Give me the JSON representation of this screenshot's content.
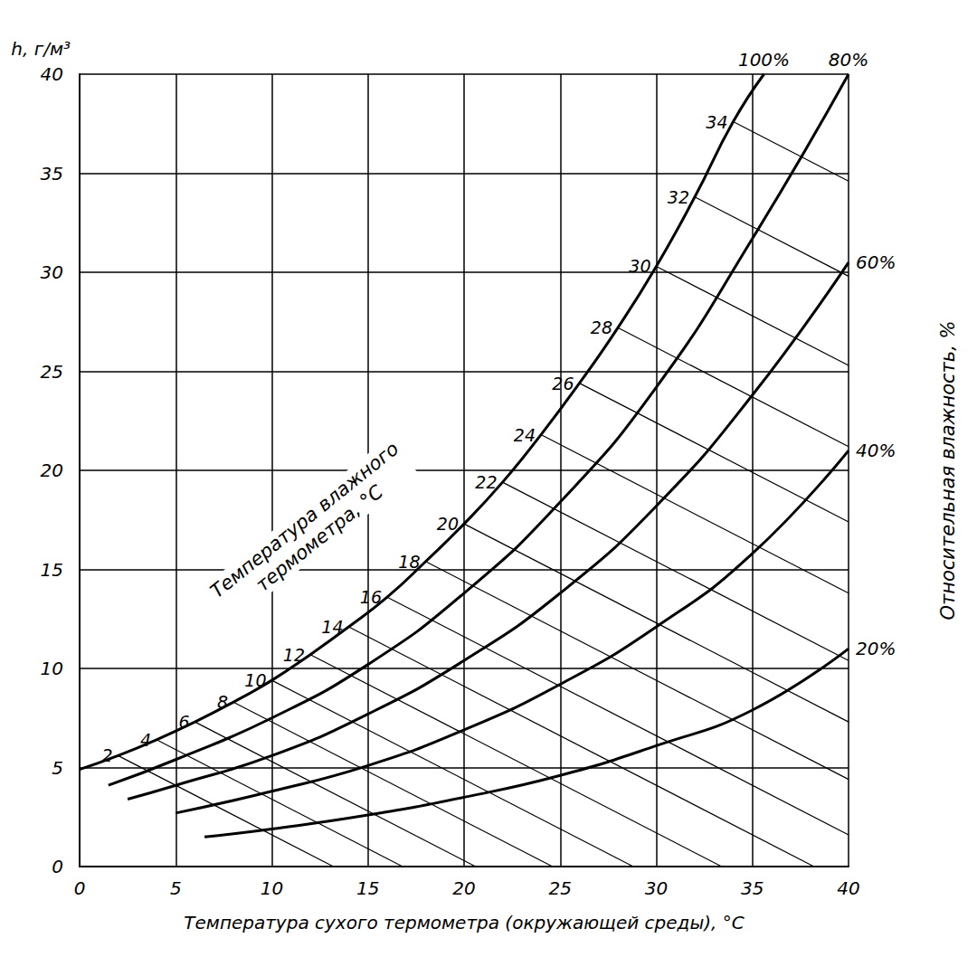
{
  "chart_data": {
    "type": "line",
    "x_label": "Температура сухого термометра (окружающей среды), °C",
    "y_label": "h, г/м³",
    "y2_label": "Относительная влажность, %",
    "annotation": "Температура влажного\nтермометра, °C",
    "xlim": [
      0,
      40
    ],
    "xticks": [
      0,
      5,
      10,
      15,
      20,
      25,
      30,
      35,
      40
    ],
    "ylim": [
      0,
      40
    ],
    "yticks": [
      0,
      5,
      10,
      15,
      20,
      25,
      30,
      35,
      40
    ],
    "grid": true,
    "color": "#000000",
    "series": [
      {
        "name": "100%",
        "x": [
          0,
          2,
          4,
          6,
          8,
          10,
          12,
          14,
          16,
          18,
          20,
          22,
          24,
          26,
          28,
          30,
          32,
          34,
          35.6
        ],
        "values": [
          4.9,
          5.6,
          6.4,
          7.3,
          8.3,
          9.4,
          10.7,
          12.1,
          13.6,
          15.4,
          17.3,
          19.4,
          21.8,
          24.4,
          27.2,
          30.3,
          33.8,
          37.6,
          40
        ]
      },
      {
        "name": "80%",
        "x": [
          1.5,
          5,
          10,
          15,
          20,
          25,
          30,
          35,
          40
        ],
        "values": [
          4.1,
          5.4,
          7.5,
          10.2,
          13.8,
          18.4,
          24.2,
          31.7,
          40
        ]
      },
      {
        "name": "60%",
        "x": [
          2.5,
          5,
          10,
          15,
          20,
          25,
          30,
          35,
          40
        ],
        "values": [
          3.4,
          4.1,
          5.6,
          7.7,
          10.4,
          13.8,
          18.2,
          23.8,
          30.5
        ]
      },
      {
        "name": "40%",
        "x": [
          5,
          10,
          15,
          20,
          25,
          30,
          35,
          40
        ],
        "values": [
          2.7,
          3.8,
          5.1,
          6.9,
          9.2,
          12.1,
          15.8,
          21
        ]
      },
      {
        "name": "20%",
        "x": [
          6.5,
          10,
          15,
          20,
          25,
          30,
          35,
          40
        ],
        "values": [
          1.5,
          1.9,
          2.6,
          3.5,
          4.6,
          6.1,
          7.9,
          11
        ]
      }
    ],
    "wet_bulb_lines": [
      {
        "name": "2",
        "x": [
          2,
          13.2
        ],
        "values": [
          5.6,
          0
        ]
      },
      {
        "name": "4",
        "x": [
          4,
          16.8
        ],
        "values": [
          6.4,
          0
        ]
      },
      {
        "name": "6",
        "x": [
          6,
          20.6
        ],
        "values": [
          7.3,
          0
        ]
      },
      {
        "name": "8",
        "x": [
          8,
          24.6
        ],
        "values": [
          8.3,
          0
        ]
      },
      {
        "name": "10",
        "x": [
          10,
          28.8
        ],
        "values": [
          9.4,
          0
        ]
      },
      {
        "name": "12",
        "x": [
          12,
          33.4
        ],
        "values": [
          10.7,
          0
        ]
      },
      {
        "name": "14",
        "x": [
          14,
          38.2
        ],
        "values": [
          12.1,
          0
        ]
      },
      {
        "name": "16",
        "x": [
          16,
          40
        ],
        "values": [
          13.6,
          1.6
        ]
      },
      {
        "name": "18",
        "x": [
          18,
          40
        ],
        "values": [
          15.4,
          4.4
        ]
      },
      {
        "name": "20",
        "x": [
          20,
          40
        ],
        "values": [
          17.3,
          7.3
        ]
      },
      {
        "name": "22",
        "x": [
          22,
          40
        ],
        "values": [
          19.4,
          10.4
        ]
      },
      {
        "name": "24",
        "x": [
          24,
          40
        ],
        "values": [
          21.8,
          13.8
        ]
      },
      {
        "name": "26",
        "x": [
          26,
          40
        ],
        "values": [
          24.4,
          17.4
        ]
      },
      {
        "name": "28",
        "x": [
          28,
          40
        ],
        "values": [
          27.2,
          21.2
        ]
      },
      {
        "name": "30",
        "x": [
          30,
          40
        ],
        "values": [
          30.3,
          25.3
        ]
      },
      {
        "name": "32",
        "x": [
          32,
          40
        ],
        "values": [
          33.8,
          29.8
        ]
      },
      {
        "name": "34",
        "x": [
          34,
          40
        ],
        "values": [
          37.6,
          34.6
        ]
      }
    ]
  }
}
